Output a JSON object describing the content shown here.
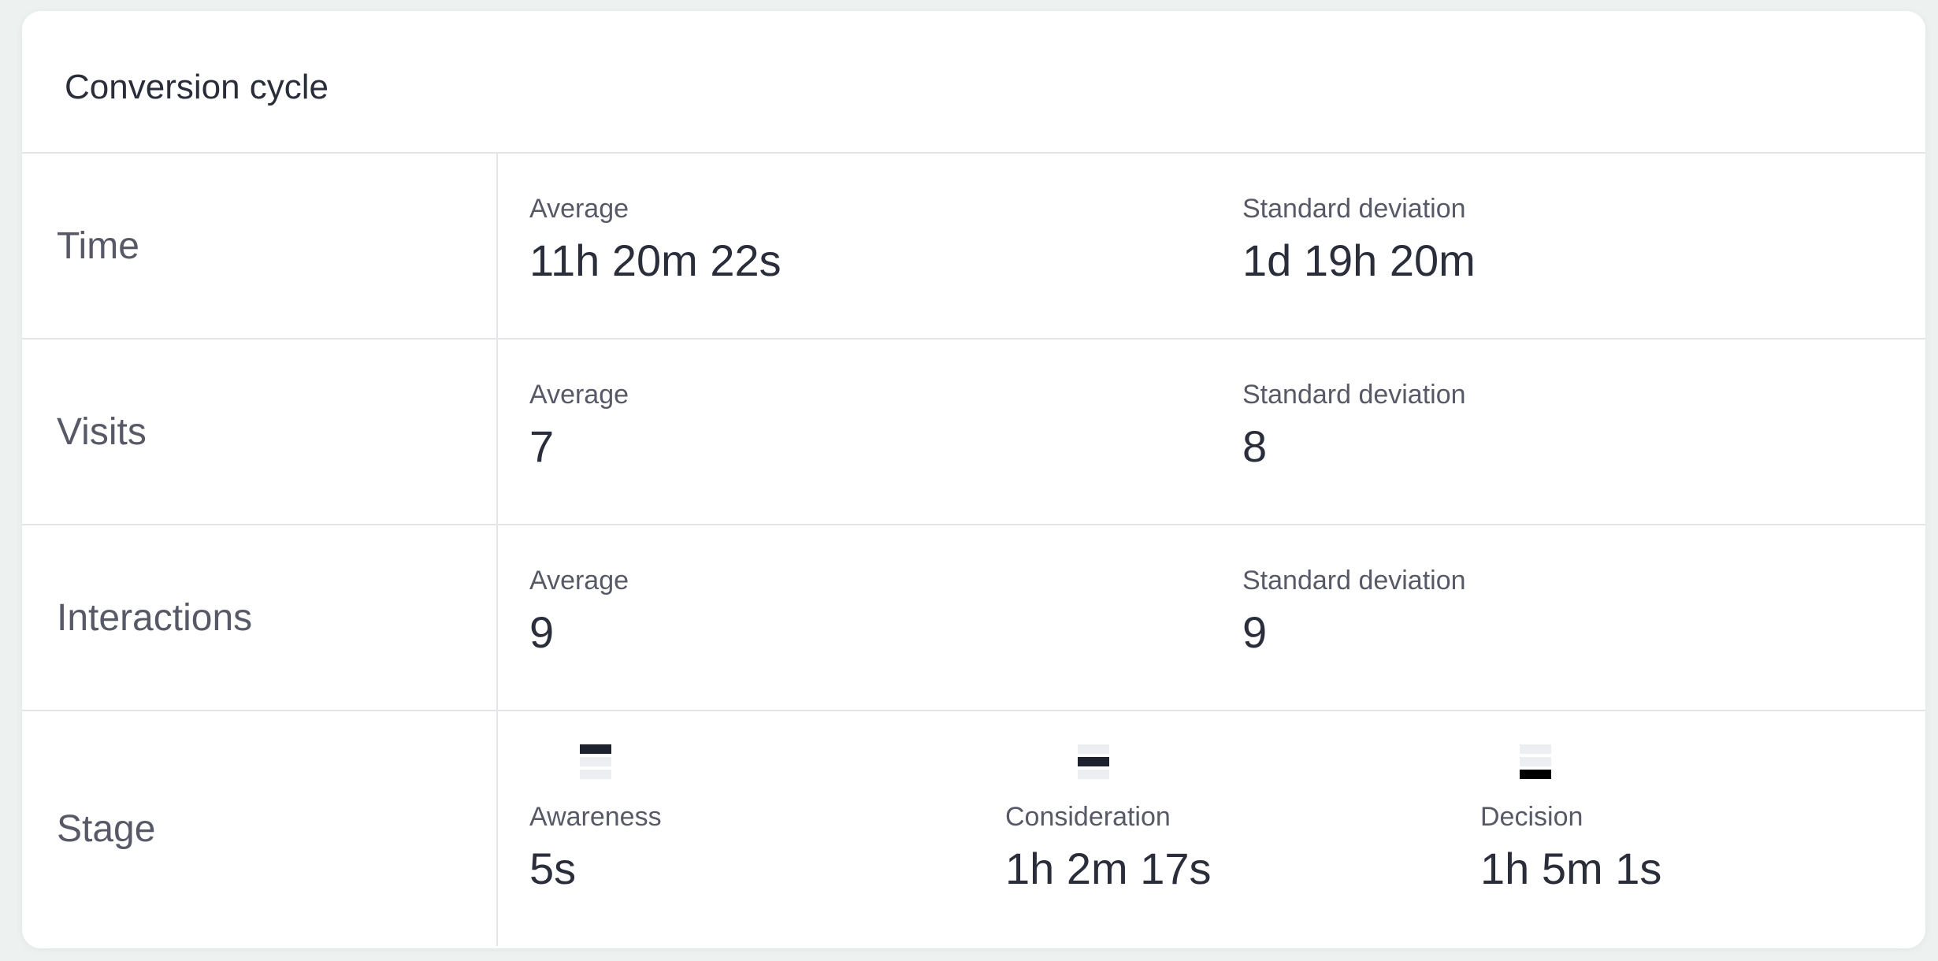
{
  "card": {
    "title": "Conversion cycle"
  },
  "rows": [
    {
      "label": "Time",
      "average_label": "Average",
      "average_value": "11h 20m 22s",
      "stddev_label": "Standard deviation",
      "stddev_value": "1d 19h 20m"
    },
    {
      "label": "Visits",
      "average_label": "Average",
      "average_value": "7",
      "stddev_label": "Standard deviation",
      "stddev_value": "8"
    },
    {
      "label": "Interactions",
      "average_label": "Average",
      "average_value": "9",
      "stddev_label": "Standard deviation",
      "stddev_value": "9"
    }
  ],
  "stage": {
    "label": "Stage",
    "items": [
      {
        "icon": "funnel-stage-1-icon",
        "label": "Awareness",
        "value": "5s"
      },
      {
        "icon": "funnel-stage-2-icon",
        "label": "Consideration",
        "value": "1h 2m 17s"
      },
      {
        "icon": "funnel-stage-3-icon",
        "label": "Decision",
        "value": "1h 5m 1s"
      }
    ]
  }
}
